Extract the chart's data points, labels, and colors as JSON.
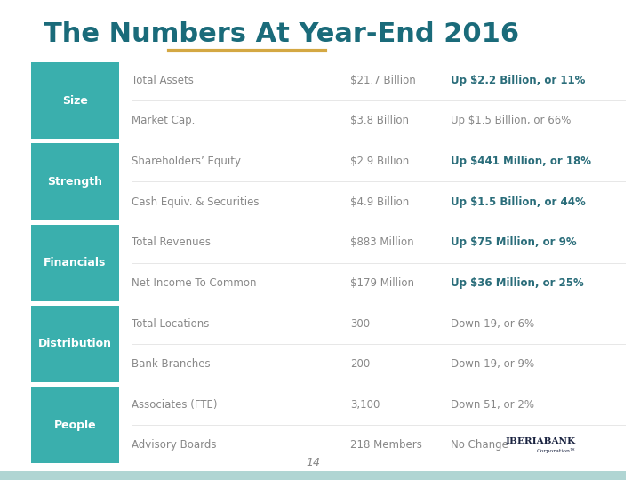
{
  "title": "The Numbers At Year-End 2016",
  "title_color": "#1a6b7a",
  "underline_color": "#d4a843",
  "background_color": "#ffffff",
  "teal_color": "#3aafad",
  "label_text_color": "#ffffff",
  "row_text_color": "#888888",
  "bold_text_color": "#2a6d7a",
  "page_number": "14",
  "sections": [
    {
      "label": "Size",
      "rows": [
        {
          "metric": "Total Assets",
          "value": "$21.7 Billion",
          "change": "Up $2.2 Billion, or 11%",
          "bold_change": true
        },
        {
          "metric": "Market Cap.",
          "value": "$3.8 Billion",
          "change": "Up $1.5 Billion, or 66%",
          "bold_change": false
        }
      ]
    },
    {
      "label": "Strength",
      "rows": [
        {
          "metric": "Shareholders’ Equity",
          "value": "$2.9 Billion",
          "change": "Up $441 Million, or 18%",
          "bold_change": true
        },
        {
          "metric": "Cash Equiv. & Securities",
          "value": "$4.9 Billion",
          "change": "Up $1.5 Billion, or 44%",
          "bold_change": true
        }
      ]
    },
    {
      "label": "Financials",
      "rows": [
        {
          "metric": "Total Revenues",
          "value": "$883 Million",
          "change": "Up $75 Million, or 9%",
          "bold_change": true
        },
        {
          "metric": "Net Income To Common",
          "value": "$179 Million",
          "change": "Up $36 Million, or 25%",
          "bold_change": true
        }
      ]
    },
    {
      "label": "Distribution",
      "rows": [
        {
          "metric": "Total Locations",
          "value": "300",
          "change": "Down 19, or 6%",
          "bold_change": false
        },
        {
          "metric": "Bank Branches",
          "value": "200",
          "change": "Down 19, or 9%",
          "bold_change": false
        }
      ]
    },
    {
      "label": "People",
      "rows": [
        {
          "metric": "Associates (FTE)",
          "value": "3,100",
          "change": "Down 51, or 2%",
          "bold_change": false
        },
        {
          "metric": "Advisory Boards",
          "value": "218 Members",
          "change": "No Change",
          "bold_change": false
        }
      ]
    }
  ]
}
